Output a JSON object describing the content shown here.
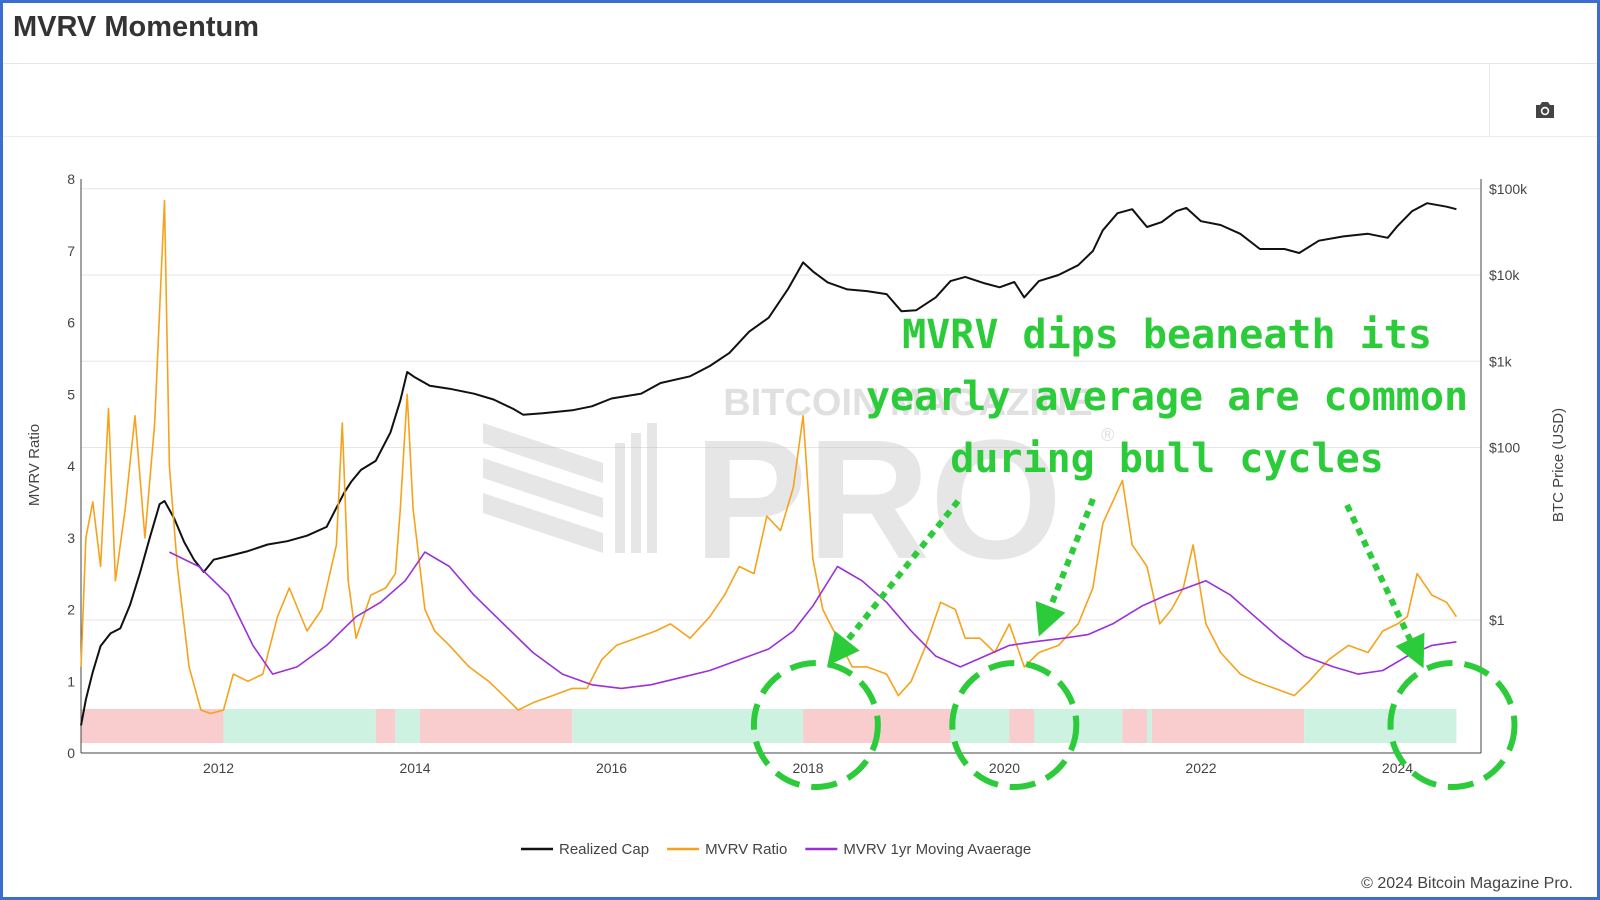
{
  "page": {
    "title": "MVRV Momentum",
    "copyright": "© 2024 Bitcoin Magazine Pro.",
    "camera_icon": "camera-icon"
  },
  "watermark": {
    "top_text": "BITCOIN MAGAZINE",
    "main_text": "PRO",
    "mark": "®"
  },
  "annotation": {
    "lines": [
      "MVRV dips beaneath its",
      "yearly average are common",
      "during bull cycles"
    ],
    "color": "#2bcb3a"
  },
  "chart_data": {
    "type": "line",
    "legend_position": "bottom",
    "grid": true,
    "x_axis": {
      "range": [
        2010.6,
        2024.85
      ],
      "ticks": [
        2012,
        2014,
        2016,
        2018,
        2020,
        2022,
        2024
      ]
    },
    "y_left": {
      "title": "MVRV Ratio",
      "range": [
        0,
        8
      ],
      "ticks": [
        0,
        1,
        2,
        3,
        4,
        5,
        6,
        7,
        8
      ]
    },
    "y_right": {
      "title": "BTC Price (USD)",
      "scale": "log",
      "ticks": [
        {
          "value": 1,
          "label": "$1"
        },
        {
          "value": 100,
          "label": "$100"
        },
        {
          "value": 1000,
          "label": "$1k"
        },
        {
          "value": 10000,
          "label": "$10k"
        },
        {
          "value": 100000,
          "label": "$100k"
        }
      ]
    },
    "series": [
      {
        "name": "Realized Cap",
        "color": "#111111",
        "axis": "right",
        "x": [
          2010.6,
          2010.65,
          2010.72,
          2010.8,
          2010.9,
          2011.0,
          2011.1,
          2011.2,
          2011.3,
          2011.4,
          2011.45,
          2011.55,
          2011.65,
          2011.75,
          2011.85,
          2011.95,
          2012.1,
          2012.3,
          2012.5,
          2012.7,
          2012.9,
          2013.1,
          2013.2,
          2013.28,
          2013.35,
          2013.45,
          2013.6,
          2013.75,
          2013.85,
          2013.92,
          2014.0,
          2014.15,
          2014.35,
          2014.6,
          2014.8,
          2015.0,
          2015.1,
          2015.3,
          2015.6,
          2015.8,
          2016.0,
          2016.3,
          2016.5,
          2016.8,
          2017.0,
          2017.2,
          2017.4,
          2017.6,
          2017.8,
          2017.95,
          2018.05,
          2018.2,
          2018.4,
          2018.6,
          2018.8,
          2018.95,
          2019.1,
          2019.3,
          2019.45,
          2019.6,
          2019.8,
          2019.95,
          2020.1,
          2020.2,
          2020.35,
          2020.55,
          2020.75,
          2020.9,
          2021.0,
          2021.15,
          2021.3,
          2021.45,
          2021.6,
          2021.75,
          2021.85,
          2022.0,
          2022.2,
          2022.4,
          2022.6,
          2022.85,
          2023.0,
          2023.2,
          2023.45,
          2023.7,
          2023.9,
          2024.0,
          2024.15,
          2024.3,
          2024.5,
          2024.6
        ],
        "y": [
          0.06,
          0.12,
          0.25,
          0.5,
          0.7,
          0.8,
          1.5,
          3.5,
          9,
          22,
          24,
          15,
          8,
          5,
          3.6,
          5,
          5.5,
          6.3,
          7.5,
          8.2,
          9.5,
          12,
          20,
          30,
          40,
          55,
          70,
          150,
          350,
          750,
          650,
          520,
          480,
          420,
          360,
          280,
          240,
          250,
          270,
          300,
          370,
          420,
          560,
          670,
          880,
          1250,
          2200,
          3200,
          7000,
          14000,
          11000,
          8200,
          6800,
          6500,
          6000,
          3800,
          3900,
          5500,
          8500,
          9500,
          8000,
          7200,
          8300,
          5500,
          8500,
          10000,
          13000,
          19000,
          33000,
          52000,
          58000,
          36000,
          41000,
          55000,
          60000,
          42000,
          38000,
          30000,
          20000,
          20000,
          18000,
          25000,
          28000,
          30000,
          27000,
          37000,
          55000,
          68000,
          62000,
          58000
        ]
      },
      {
        "name": "MVRV Ratio",
        "color": "#f7a21b",
        "axis": "left",
        "x": [
          2010.6,
          2010.65,
          2010.72,
          2010.8,
          2010.88,
          2010.95,
          2011.05,
          2011.15,
          2011.25,
          2011.35,
          2011.42,
          2011.45,
          2011.5,
          2011.58,
          2011.7,
          2011.82,
          2011.92,
          2012.05,
          2012.15,
          2012.3,
          2012.45,
          2012.6,
          2012.72,
          2012.9,
          2013.05,
          2013.2,
          2013.26,
          2013.32,
          2013.4,
          2013.55,
          2013.7,
          2013.8,
          2013.85,
          2013.92,
          2013.98,
          2014.1,
          2014.2,
          2014.35,
          2014.55,
          2014.75,
          2014.9,
          2015.05,
          2015.2,
          2015.4,
          2015.6,
          2015.75,
          2015.9,
          2016.05,
          2016.25,
          2016.45,
          2016.6,
          2016.8,
          2017.0,
          2017.15,
          2017.3,
          2017.45,
          2017.58,
          2017.72,
          2017.85,
          2017.95,
          2018.05,
          2018.15,
          2018.3,
          2018.45,
          2018.6,
          2018.8,
          2018.92,
          2019.05,
          2019.2,
          2019.35,
          2019.5,
          2019.6,
          2019.75,
          2019.9,
          2020.05,
          2020.2,
          2020.35,
          2020.55,
          2020.75,
          2020.9,
          2021.0,
          2021.1,
          2021.2,
          2021.3,
          2021.45,
          2021.58,
          2021.7,
          2021.82,
          2021.92,
          2022.05,
          2022.2,
          2022.4,
          2022.55,
          2022.75,
          2022.95,
          2023.1,
          2023.3,
          2023.5,
          2023.7,
          2023.85,
          2024.0,
          2024.1,
          2024.2,
          2024.35,
          2024.5,
          2024.6
        ],
        "y": [
          1.2,
          3.0,
          3.5,
          2.6,
          4.8,
          2.4,
          3.4,
          4.7,
          3.0,
          4.6,
          6.8,
          7.7,
          4.0,
          2.6,
          1.2,
          0.6,
          0.55,
          0.6,
          1.1,
          1.0,
          1.1,
          1.9,
          2.3,
          1.7,
          2.0,
          2.9,
          4.6,
          2.4,
          1.6,
          2.2,
          2.3,
          2.5,
          3.4,
          5.0,
          3.4,
          2.0,
          1.7,
          1.5,
          1.2,
          1.0,
          0.8,
          0.6,
          0.7,
          0.8,
          0.9,
          0.9,
          1.3,
          1.5,
          1.6,
          1.7,
          1.8,
          1.6,
          1.9,
          2.2,
          2.6,
          2.5,
          3.3,
          3.1,
          3.7,
          4.7,
          2.7,
          2.0,
          1.6,
          1.2,
          1.2,
          1.1,
          0.8,
          1.0,
          1.5,
          2.1,
          2.0,
          1.6,
          1.6,
          1.4,
          1.8,
          1.2,
          1.4,
          1.5,
          1.8,
          2.3,
          3.2,
          3.5,
          3.8,
          2.9,
          2.6,
          1.8,
          2.0,
          2.3,
          2.9,
          1.8,
          1.4,
          1.1,
          1.0,
          0.9,
          0.8,
          1.0,
          1.3,
          1.5,
          1.4,
          1.7,
          1.8,
          1.9,
          2.5,
          2.2,
          2.1,
          1.9
        ]
      },
      {
        "name": "MVRV 1yr Moving Avaerage",
        "color": "#9b30d9",
        "axis": "left",
        "x": [
          2011.5,
          2011.8,
          2012.1,
          2012.35,
          2012.55,
          2012.8,
          2013.1,
          2013.4,
          2013.65,
          2013.9,
          2014.1,
          2014.35,
          2014.6,
          2014.9,
          2015.2,
          2015.5,
          2015.8,
          2016.1,
          2016.4,
          2016.7,
          2017.0,
          2017.3,
          2017.6,
          2017.85,
          2018.05,
          2018.3,
          2018.55,
          2018.8,
          2019.05,
          2019.3,
          2019.55,
          2019.8,
          2020.05,
          2020.3,
          2020.6,
          2020.85,
          2021.1,
          2021.4,
          2021.65,
          2021.85,
          2022.05,
          2022.3,
          2022.55,
          2022.8,
          2023.05,
          2023.35,
          2023.6,
          2023.85,
          2024.1,
          2024.35,
          2024.6
        ],
        "y": [
          2.8,
          2.6,
          2.2,
          1.5,
          1.1,
          1.2,
          1.5,
          1.9,
          2.1,
          2.4,
          2.8,
          2.6,
          2.2,
          1.8,
          1.4,
          1.1,
          0.95,
          0.9,
          0.95,
          1.05,
          1.15,
          1.3,
          1.45,
          1.7,
          2.05,
          2.6,
          2.4,
          2.1,
          1.7,
          1.35,
          1.2,
          1.35,
          1.5,
          1.55,
          1.6,
          1.65,
          1.8,
          2.05,
          2.2,
          2.3,
          2.4,
          2.2,
          1.9,
          1.6,
          1.35,
          1.2,
          1.1,
          1.15,
          1.35,
          1.5,
          1.55
        ]
      }
    ],
    "momentum_bands": [
      {
        "from": 2010.6,
        "to": 2012.05,
        "state": "bear"
      },
      {
        "from": 2012.05,
        "to": 2013.6,
        "state": "bull"
      },
      {
        "from": 2013.6,
        "to": 2013.8,
        "state": "bear"
      },
      {
        "from": 2013.8,
        "to": 2014.05,
        "state": "bull"
      },
      {
        "from": 2014.05,
        "to": 2015.6,
        "state": "bear"
      },
      {
        "from": 2015.6,
        "to": 2017.95,
        "state": "bull"
      },
      {
        "from": 2017.95,
        "to": 2019.45,
        "state": "bear"
      },
      {
        "from": 2019.45,
        "to": 2020.05,
        "state": "bull"
      },
      {
        "from": 2020.05,
        "to": 2020.3,
        "state": "bear"
      },
      {
        "from": 2020.3,
        "to": 2021.2,
        "state": "bull"
      },
      {
        "from": 2021.2,
        "to": 2021.45,
        "state": "bear"
      },
      {
        "from": 2021.45,
        "to": 2021.5,
        "state": "bull"
      },
      {
        "from": 2021.5,
        "to": 2023.05,
        "state": "bear"
      },
      {
        "from": 2023.05,
        "to": 2024.6,
        "state": "bull"
      }
    ],
    "band_colors": {
      "bull": "#cdf2e2",
      "bear": "#f9cccd"
    },
    "highlight_circles": [
      {
        "x": 2018.08,
        "label": "dip-circle"
      },
      {
        "x": 2020.1,
        "label": "dip-circle"
      },
      {
        "x": 2024.56,
        "label": "dip-circle"
      }
    ]
  }
}
